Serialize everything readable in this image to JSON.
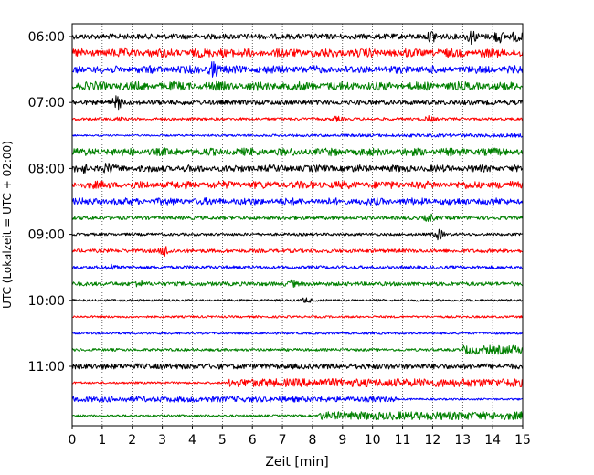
{
  "chart_data": {
    "type": "line",
    "title": "",
    "xlabel": "Zeit  [min]",
    "ylabel": "UTC (Lokalzeit = UTC + 02:00)",
    "xlim": [
      0,
      15
    ],
    "x_ticks": [
      "0",
      "1",
      "2",
      "3",
      "4",
      "5",
      "6",
      "7",
      "8",
      "9",
      "10",
      "11",
      "12",
      "13",
      "14",
      "15"
    ],
    "y_tick_labels": [
      "06:00",
      "07:00",
      "08:00",
      "09:00",
      "10:00",
      "11:00"
    ],
    "grid": "vertical dotted",
    "traces_start": "06:00",
    "trace_interval_min": 15,
    "traces": [
      {
        "color": "#000000",
        "amp": 0.3,
        "events": [
          [
            12,
            0.5
          ],
          [
            13.3,
            0.6
          ],
          [
            14.2,
            0.5
          ],
          [
            14.8,
            0.4
          ]
        ]
      },
      {
        "color": "#ff0000",
        "amp": 0.5,
        "pattern": "beats",
        "events": [
          [
            5,
            0.2
          ]
        ]
      },
      {
        "color": "#0000ff",
        "amp": 0.45,
        "pattern": "beats",
        "events": [
          [
            4.7,
            0.7
          ]
        ]
      },
      {
        "color": "#008000",
        "amp": 0.5,
        "pattern": "beats",
        "events": []
      },
      {
        "color": "#000000",
        "amp": 0.25,
        "events": [
          [
            1.5,
            0.6
          ]
        ]
      },
      {
        "color": "#ff0000",
        "amp": 0.15,
        "events": [
          [
            1.5,
            0.2
          ],
          [
            8.8,
            0.2
          ],
          [
            11.9,
            0.25
          ]
        ]
      },
      {
        "color": "#0000ff",
        "amp": 0.2,
        "pattern": "growing",
        "events": []
      },
      {
        "color": "#008000",
        "amp": 0.45,
        "pattern": "beats",
        "events": []
      },
      {
        "color": "#000000",
        "amp": 0.4,
        "pattern": "beats",
        "events": [
          [
            0.4,
            0.3
          ],
          [
            1.2,
            0.3
          ]
        ]
      },
      {
        "color": "#ff0000",
        "amp": 0.45,
        "pattern": "beats",
        "events": []
      },
      {
        "color": "#0000ff",
        "amp": 0.4,
        "pattern": "beats",
        "events": []
      },
      {
        "color": "#008000",
        "amp": 0.2,
        "events": [
          [
            11.9,
            0.3
          ]
        ]
      },
      {
        "color": "#000000",
        "amp": 0.15,
        "events": [
          [
            12.2,
            0.5
          ]
        ]
      },
      {
        "color": "#ff0000",
        "amp": 0.2,
        "events": [
          [
            3.1,
            0.5
          ]
        ]
      },
      {
        "color": "#0000ff",
        "amp": 0.18,
        "events": [
          [
            1.3,
            0.2
          ]
        ]
      },
      {
        "color": "#008000",
        "amp": 0.22,
        "events": [
          [
            2.2,
            0.25
          ],
          [
            7.3,
            0.25
          ]
        ]
      },
      {
        "color": "#000000",
        "amp": 0.12,
        "events": [
          [
            7.8,
            0.25
          ]
        ]
      },
      {
        "color": "#ff0000",
        "amp": 0.12,
        "events": []
      },
      {
        "color": "#0000ff",
        "amp": 0.12,
        "events": []
      },
      {
        "color": "#008000",
        "amp": 0.15,
        "events": [
          [
            13,
            0.5,
            "step"
          ]
        ]
      },
      {
        "color": "#000000",
        "amp": 0.3,
        "events": []
      },
      {
        "color": "#ff0000",
        "amp": 0.12,
        "events": [
          [
            5.2,
            0.45,
            "step"
          ]
        ]
      },
      {
        "color": "#0000ff",
        "amp": 0.3,
        "events": [
          [
            10.8,
            0.1,
            "drop"
          ]
        ]
      },
      {
        "color": "#008000",
        "amp": 0.12,
        "events": [
          [
            8.2,
            0.45,
            "step"
          ]
        ]
      }
    ]
  }
}
